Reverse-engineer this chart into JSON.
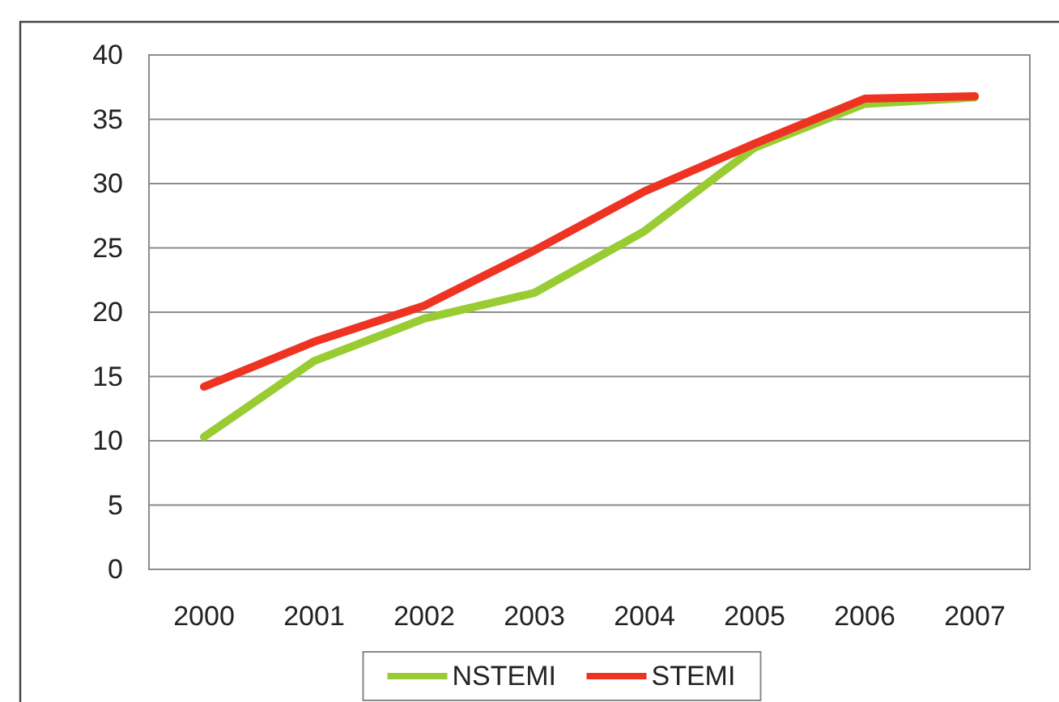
{
  "chart_data": {
    "type": "line",
    "categories": [
      "2000",
      "2001",
      "2002",
      "2003",
      "2004",
      "2005",
      "2006",
      "2007"
    ],
    "series": [
      {
        "name": "NSTEMI",
        "color": "#99cc33",
        "values": [
          10.3,
          16.2,
          19.5,
          21.5,
          26.3,
          32.8,
          36.2,
          36.7
        ]
      },
      {
        "name": "STEMI",
        "color": "#ee3322",
        "values": [
          14.2,
          17.7,
          20.5,
          24.8,
          29.4,
          33.1,
          36.6,
          36.8
        ]
      }
    ],
    "ylim": [
      0,
      40
    ],
    "yticks": [
      0,
      5,
      10,
      15,
      20,
      25,
      30,
      35,
      40
    ],
    "grid": "y",
    "legend": "bottom"
  }
}
